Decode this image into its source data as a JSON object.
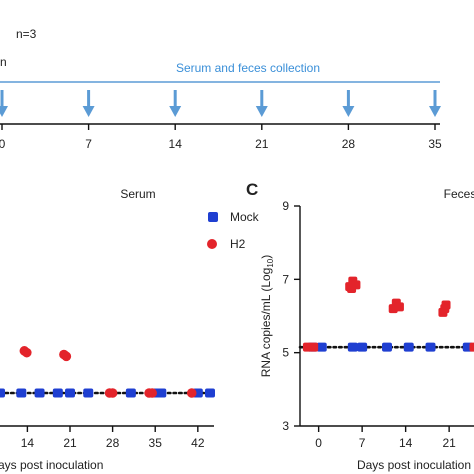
{
  "timeline": {
    "n_label": "n=3",
    "left_label": "n",
    "collection_label": "Serum and feces collection",
    "arrow_days": [
      0,
      7,
      14,
      21,
      28,
      35
    ],
    "tick_labels": [
      "0",
      "7",
      "14",
      "21",
      "28",
      "35"
    ],
    "arrow_color": "#5b9bd5",
    "text_color": "#3a8fd8"
  },
  "chart_data": [
    {
      "type": "scatter",
      "title": "Serum",
      "xlabel": "ays post inoculation",
      "ylabel": "",
      "xlim": [
        9.5,
        44
      ],
      "ylim": [
        3,
        9
      ],
      "x_ticks": [
        14,
        21,
        28,
        35,
        42
      ],
      "tick_labels": [
        "14",
        "21",
        "28",
        "35",
        "42"
      ],
      "limit_of_detection": 3.9,
      "legend": [
        {
          "name": "Mock",
          "color": "#1f3fd1",
          "marker": "square"
        },
        {
          "name": "H2",
          "color": "#e3242b",
          "marker": "circle"
        }
      ],
      "series": [
        {
          "name": "Mock",
          "color": "#1f3fd1",
          "points": [
            [
              9.5,
              3.9
            ],
            [
              13,
              3.9
            ],
            [
              16,
              3.9
            ],
            [
              19,
              3.9
            ],
            [
              21,
              3.9
            ],
            [
              24,
              3.9
            ],
            [
              31,
              3.9
            ],
            [
              35,
              3.9
            ],
            [
              36,
              3.9
            ],
            [
              42,
              3.9
            ],
            [
              44,
              3.9
            ]
          ]
        },
        {
          "name": "H2",
          "color": "#e3242b",
          "points": [
            [
              13.5,
              5.05
            ],
            [
              13.9,
              5.0
            ],
            [
              20,
              4.95
            ],
            [
              20.4,
              4.9
            ],
            [
              27.5,
              3.9
            ],
            [
              28,
              3.9
            ],
            [
              34,
              3.9
            ],
            [
              34.5,
              3.9
            ],
            [
              41,
              3.9
            ]
          ]
        }
      ]
    },
    {
      "type": "scatter",
      "panel_letter": "C",
      "title": "Feces",
      "xlabel": "Days post inoculation",
      "ylabel": "RNA copies/mL (Log",
      "ylabel_sub": "10",
      "ylabel_end": ")",
      "xlim": [
        -3,
        25
      ],
      "ylim": [
        3,
        9
      ],
      "x_ticks": [
        0,
        7,
        14,
        21
      ],
      "tick_labels": [
        "0",
        "7",
        "14",
        "21"
      ],
      "y_ticks": [
        3,
        5,
        7,
        9
      ],
      "y_tick_labels": [
        "3",
        "5",
        "7",
        "9"
      ],
      "limit_of_detection": 5.15,
      "series": [
        {
          "name": "Mock",
          "color": "#1f3fd1",
          "points": [
            [
              -1,
              5.15
            ],
            [
              0.5,
              5.15
            ],
            [
              5.5,
              5.15
            ],
            [
              7,
              5.15
            ],
            [
              11,
              5.15
            ],
            [
              14.5,
              5.15
            ],
            [
              18,
              5.15
            ],
            [
              24,
              5.15
            ]
          ]
        },
        {
          "name": "H2",
          "color": "#e3242b",
          "points": [
            [
              -1.8,
              5.15
            ],
            [
              -0.8,
              5.15
            ],
            [
              5,
              6.8
            ],
            [
              5.5,
              6.95
            ],
            [
              6,
              6.85
            ],
            [
              5.3,
              6.75
            ],
            [
              12,
              6.2
            ],
            [
              12.5,
              6.35
            ],
            [
              13,
              6.25
            ],
            [
              20,
              6.1
            ],
            [
              20.5,
              6.3
            ],
            [
              20.3,
              6.2
            ],
            [
              25,
              5.15
            ]
          ]
        }
      ]
    }
  ]
}
